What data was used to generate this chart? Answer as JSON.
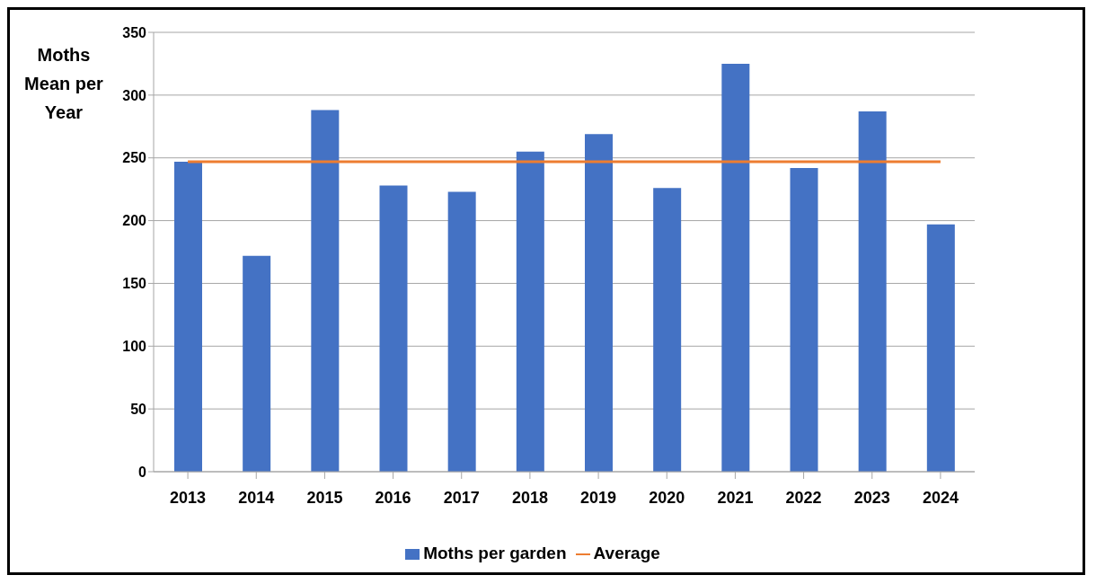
{
  "chart_data": {
    "type": "bar",
    "ylabel": "Moths Mean per Year",
    "categories": [
      "2013",
      "2014",
      "2015",
      "2016",
      "2017",
      "2018",
      "2019",
      "2020",
      "2021",
      "2022",
      "2023",
      "2024"
    ],
    "series": [
      {
        "name": "Moths per garden",
        "color": "#4472c4",
        "values": [
          247,
          172,
          288,
          228,
          223,
          255,
          269,
          226,
          325,
          242,
          287,
          197
        ]
      },
      {
        "name": "Average",
        "type": "line",
        "color": "#ed7d31",
        "values": [
          247,
          247,
          247,
          247,
          247,
          247,
          247,
          247,
          247,
          247,
          247,
          247
        ]
      }
    ],
    "ylim": [
      0,
      350
    ],
    "yticks": [
      0,
      50,
      100,
      150,
      200,
      250,
      300,
      350
    ],
    "grid": "y",
    "legend": "bottom",
    "marker": "none",
    "line_style": "solid"
  }
}
